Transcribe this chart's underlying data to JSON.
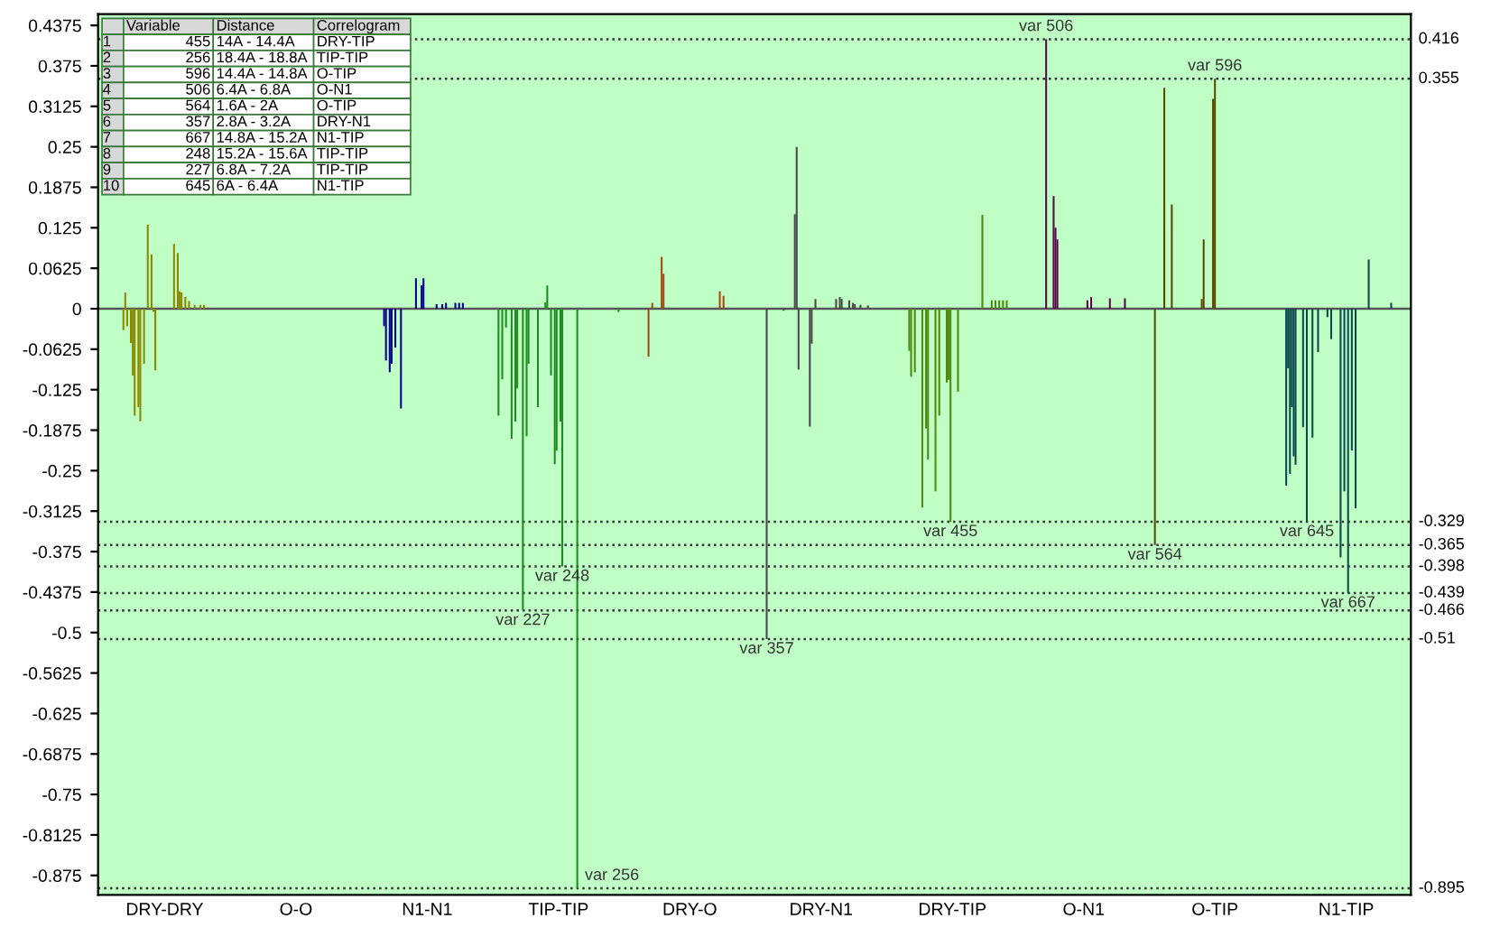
{
  "chart_data": {
    "type": "bar",
    "categories": [
      null,
      null,
      null,
      null,
      null,
      null,
      null,
      null,
      null,
      null,
      null,
      null,
      null,
      null,
      null,
      null,
      null,
      null,
      null,
      null,
      null,
      null,
      null,
      null,
      null,
      null,
      null,
      null,
      null,
      null,
      null,
      null,
      null,
      null,
      null,
      "DRY-DRY",
      null,
      null,
      null,
      null,
      null,
      null,
      null,
      null,
      null,
      null,
      null,
      null,
      null,
      null,
      null,
      null,
      null,
      null,
      null,
      null,
      null,
      null,
      null,
      null,
      null,
      null,
      null,
      null,
      null,
      null,
      null,
      null,
      null,
      null,
      null,
      null,
      null,
      null,
      null,
      null,
      null,
      null,
      null,
      null,
      null,
      null,
      null,
      null,
      null,
      null,
      null,
      null,
      null,
      null,
      null,
      null,
      null,
      null,
      null,
      null,
      null,
      null,
      null,
      null,
      null,
      null,
      null,
      null,
      null,
      "O-O",
      null,
      null,
      null,
      null,
      null,
      null,
      null,
      null,
      null,
      null,
      null,
      null,
      null,
      null,
      null,
      null,
      null,
      null,
      null,
      null,
      null,
      null,
      null,
      null,
      null,
      null,
      null,
      null,
      null,
      null,
      null,
      null,
      null,
      null,
      null,
      null,
      null,
      null,
      null,
      null,
      null,
      null,
      null,
      null,
      null,
      null,
      null,
      null,
      null,
      null,
      null,
      null,
      null,
      null,
      null,
      null,
      null,
      null,
      null,
      null,
      null,
      null,
      null,
      null,
      null,
      null,
      null,
      null,
      null,
      "N1-N1",
      null,
      null,
      null,
      null,
      null,
      null,
      null,
      null,
      null,
      null,
      null,
      null,
      null,
      null,
      null,
      null,
      null,
      null,
      null,
      null,
      null,
      null,
      null,
      null,
      null,
      null,
      null,
      null,
      null,
      null,
      null,
      null,
      null,
      null,
      null,
      null,
      null,
      null,
      null,
      null,
      null,
      null,
      null,
      null,
      null,
      null,
      null,
      null,
      null,
      null,
      null,
      null,
      null,
      null,
      null,
      null,
      null,
      null,
      null,
      null,
      null,
      null,
      null,
      null,
      null,
      null,
      null,
      null,
      null,
      "TIP-TIP",
      null,
      null,
      null,
      null,
      null,
      null,
      null,
      null,
      null,
      null,
      null,
      null,
      null,
      null,
      null,
      null,
      null,
      null,
      null,
      null,
      null,
      null,
      null,
      null,
      null,
      null,
      null,
      null,
      null,
      null,
      null,
      null,
      null,
      null,
      null,
      null,
      null,
      null,
      null,
      null,
      null,
      null,
      null,
      null,
      null,
      null,
      null,
      null,
      null,
      null,
      null,
      null,
      null,
      null,
      null,
      null,
      null,
      null,
      null,
      null,
      null,
      null,
      null,
      null,
      null,
      null,
      null,
      null,
      null,
      "DRY-O",
      null,
      null,
      null,
      null,
      null,
      null,
      null,
      null,
      null,
      null,
      null,
      null,
      null,
      null,
      null,
      null,
      null,
      null,
      null,
      null,
      null,
      null,
      null,
      null,
      null,
      null,
      null,
      null,
      null,
      null,
      null,
      null,
      null,
      null,
      null,
      null,
      null,
      null,
      null,
      null,
      null,
      null,
      null,
      null,
      null,
      null,
      null,
      null,
      null,
      null,
      null,
      null,
      null,
      null,
      null,
      null,
      null,
      null,
      null,
      null,
      null,
      null,
      null,
      null,
      null,
      null,
      null,
      null,
      null,
      "DRY-N1",
      null,
      null,
      null,
      null,
      null,
      null,
      null,
      null,
      null,
      null,
      null,
      null,
      null,
      null,
      null,
      null,
      null,
      null,
      null,
      null,
      null,
      null,
      null,
      null,
      null,
      null,
      null,
      null,
      null,
      null,
      null,
      null,
      null,
      null,
      null,
      null,
      null,
      null,
      null,
      null,
      null,
      null,
      null,
      null,
      null,
      null,
      null,
      null,
      null,
      null,
      null,
      null,
      null,
      null,
      null,
      null,
      null,
      null,
      null,
      null,
      null,
      null,
      null,
      null,
      null,
      null,
      null,
      null,
      null,
      "DRY-TIP",
      null,
      null,
      null,
      null,
      null,
      null,
      null,
      null,
      null,
      null,
      null,
      null,
      null,
      null,
      null,
      null,
      null,
      null,
      null,
      null,
      null,
      null,
      null,
      null,
      null,
      null,
      null,
      null,
      null,
      null,
      null,
      null,
      null,
      null,
      null,
      null,
      null,
      null,
      null,
      null,
      null,
      null,
      null,
      null,
      null,
      null,
      null,
      null,
      null,
      null,
      null,
      null,
      null,
      null,
      null,
      null,
      null,
      null,
      null,
      null,
      null,
      null,
      null,
      null,
      null,
      null,
      null,
      null,
      null,
      "O-N1",
      null,
      null,
      null,
      null,
      null,
      null,
      null,
      null,
      null,
      null,
      null,
      null,
      null,
      null,
      null,
      null,
      null,
      null,
      null,
      null,
      null,
      null,
      null,
      null,
      null,
      null,
      null,
      null,
      null,
      null,
      null,
      null,
      null,
      null,
      null,
      null,
      null,
      null,
      null,
      null,
      null,
      null,
      null,
      null,
      null,
      null,
      null,
      null,
      null,
      null,
      null,
      null,
      null,
      null,
      null,
      null,
      null,
      null,
      null,
      null,
      null,
      null,
      null,
      null,
      null,
      null,
      null,
      null,
      null,
      "O-TIP",
      null,
      null,
      null,
      null,
      null,
      null,
      null,
      null,
      null,
      null,
      null,
      null,
      null,
      null,
      null,
      null,
      null,
      null,
      null,
      null,
      null,
      null,
      null,
      null,
      null,
      null,
      null,
      null,
      null,
      null,
      null,
      null,
      null,
      null,
      null,
      null,
      null,
      null,
      null,
      null,
      null,
      null,
      null,
      null,
      null,
      null,
      null,
      null,
      null,
      null,
      null,
      null,
      null,
      null,
      null,
      null,
      null,
      null,
      null,
      null,
      null,
      null,
      null,
      null,
      null,
      null,
      null,
      null,
      null,
      "N1-TIP",
      null,
      null,
      null,
      null,
      null,
      null,
      null,
      null,
      null,
      null,
      null,
      null,
      null,
      null,
      null,
      null,
      null,
      null,
      null,
      null,
      null,
      null,
      null,
      null,
      null,
      null,
      null,
      null,
      null,
      null,
      null,
      null,
      null,
      null
    ],
    "ylim": [
      -0.905,
      0.455
    ],
    "yticks": [
      0.4375,
      0.375,
      0.3125,
      0.25,
      0.1875,
      0.125,
      0.0625,
      0,
      -0.0625,
      -0.125,
      -0.1875,
      -0.25,
      -0.3125,
      -0.375,
      -0.4375,
      -0.5,
      -0.5625,
      -0.625,
      -0.6875,
      -0.75,
      -0.8125,
      -0.875
    ],
    "series": [
      {
        "values": [
          null,
          null,
          null,
          null,
          null,
          null,
          null,
          null,
          null,
          null,
          null,
          null,
          null,
          -0.033,
          0.025,
          -0.027,
          null,
          -0.053,
          -0.103,
          -0.165,
          null,
          -0.152,
          -0.174,
          null,
          -0.085,
          null,
          0.13,
          null,
          0.084,
          -0.005,
          -0.095,
          null,
          null,
          null,
          null,
          null,
          null,
          null,
          null,
          null,
          0.1,
          null,
          0.086,
          0.027,
          0.025,
          null,
          0.018,
          null,
          0.012,
          null,
          null,
          0.006,
          null,
          null,
          0.006,
          null,
          0.006,
          null,
          null,
          null,
          null,
          null,
          null,
          null,
          null,
          null,
          null,
          null,
          null,
          null,
          null,
          null,
          null,
          null,
          null,
          null,
          null,
          null,
          null,
          null,
          null,
          null,
          null,
          null,
          null,
          null,
          null,
          null,
          null,
          null,
          null,
          null,
          null,
          null,
          null,
          null,
          null,
          null,
          null,
          null,
          null,
          null,
          null,
          null,
          null,
          null,
          null,
          null,
          null,
          null,
          null,
          null,
          null,
          null,
          null,
          null,
          null,
          null,
          null,
          null,
          null,
          null,
          null,
          null,
          null,
          null,
          null,
          null,
          null,
          null,
          null,
          null,
          null,
          null,
          null,
          null,
          null,
          null,
          null,
          null,
          null,
          null,
          null,
          null,
          null,
          null,
          null,
          null,
          null,
          null,
          null,
          null,
          -0.027,
          -0.08,
          null,
          -0.098,
          -0.085,
          null,
          -0.06,
          null,
          null,
          -0.154,
          null,
          null,
          null,
          null,
          null,
          null,
          null,
          0.047,
          null,
          null,
          0.036,
          0.047,
          null,
          null,
          null,
          null,
          null,
          null,
          0.007,
          null,
          null,
          0.007,
          null,
          0.009,
          null,
          null,
          null,
          null,
          0.009,
          null,
          0.009,
          null,
          0.009,
          null,
          null,
          null,
          null,
          null,
          null,
          null,
          null,
          null,
          null,
          null,
          null,
          null,
          null,
          null,
          null,
          null,
          null,
          -0.165,
          null,
          -0.109,
          null,
          -0.029,
          null,
          null,
          -0.201,
          null,
          -0.174,
          -0.123,
          null,
          null,
          -0.466,
          null,
          -0.197,
          -0.085,
          null,
          null,
          null,
          null,
          -0.152,
          null,
          null,
          null,
          0.01,
          0.036,
          null,
          -0.103,
          null,
          -0.24,
          -0.219,
          null,
          -0.174,
          -0.398,
          null,
          null,
          null,
          null,
          null,
          null,
          null,
          -0.895,
          null,
          null,
          null,
          null,
          null,
          null,
          null,
          null,
          null,
          null,
          null,
          null,
          null,
          null,
          null,
          null,
          null,
          null,
          null,
          null,
          null,
          -0.005,
          null,
          null,
          null,
          null,
          null,
          null,
          null,
          null,
          null,
          null,
          null,
          null,
          null,
          null,
          null,
          -0.074,
          null,
          0.009,
          null,
          null,
          null,
          null,
          0.08,
          0.054,
          null,
          null,
          null,
          null,
          null,
          null,
          null,
          null,
          null,
          null,
          null,
          null,
          null,
          null,
          null,
          null,
          null,
          null,
          null,
          null,
          null,
          null,
          null,
          null,
          null,
          null,
          null,
          null,
          null,
          0.027,
          null,
          0.02,
          null,
          null,
          null,
          null,
          null,
          null,
          null,
          null,
          null,
          null,
          null,
          null,
          null,
          null,
          null,
          null,
          null,
          null,
          null,
          null,
          null,
          null,
          -0.51,
          null,
          null,
          null,
          null,
          null,
          null,
          null,
          null,
          -0.003,
          null,
          null,
          null,
          null,
          null,
          0.146,
          0.25,
          -0.094,
          null,
          null,
          null,
          null,
          null,
          -0.182,
          -0.054,
          null,
          0.015,
          null,
          null,
          null,
          null,
          null,
          null,
          null,
          null,
          null,
          null,
          0.015,
          null,
          0.018,
          0.015,
          null,
          null,
          null,
          0.013,
          null,
          0.009,
          0.007,
          null,
          null,
          0.006,
          null,
          null,
          null,
          0.005,
          null,
          null,
          null,
          null,
          null,
          null,
          null,
          null,
          null,
          null,
          null,
          null,
          null,
          null,
          null,
          null,
          null,
          null,
          null,
          null,
          null,
          -0.065,
          -0.105,
          null,
          -0.098,
          null,
          null,
          null,
          -0.307,
          null,
          -0.185,
          -0.233,
          null,
          null,
          null,
          -0.282,
          null,
          -0.165,
          null,
          null,
          null,
          -0.114,
          -0.11,
          -0.329,
          null,
          null,
          null,
          -0.128,
          null,
          null,
          null,
          null,
          null,
          null,
          null,
          null,
          null,
          null,
          null,
          null,
          0.145,
          null,
          null,
          null,
          null,
          0.013,
          null,
          0.013,
          null,
          0.013,
          null,
          0.013,
          null,
          0.013,
          null,
          null,
          null,
          null,
          null,
          null,
          null,
          null,
          null,
          null,
          null,
          null,
          null,
          null,
          null,
          null,
          null,
          null,
          null,
          null,
          0.416,
          null,
          null,
          null,
          0.174,
          0.125,
          0.107,
          null,
          null,
          null,
          null,
          null,
          null,
          null,
          null,
          null,
          null,
          null,
          null,
          null,
          null,
          null,
          0.013,
          null,
          0.018,
          null,
          null,
          null,
          null,
          null,
          null,
          null,
          null,
          null,
          0.016,
          null,
          null,
          null,
          null,
          null,
          null,
          null,
          0.016,
          null,
          null,
          null,
          null,
          null,
          null,
          null,
          null,
          null,
          null,
          null,
          null,
          null,
          null,
          null,
          -0.365,
          null,
          null,
          null,
          null,
          0.341,
          null,
          null,
          null,
          0.161,
          null,
          null,
          null,
          null,
          null,
          null,
          null,
          null,
          null,
          null,
          null,
          null,
          null,
          null,
          null,
          0.015,
          0.107,
          null,
          null,
          null,
          null,
          0.324,
          0.355,
          null,
          null,
          null,
          null,
          null,
          null,
          null,
          null,
          null,
          null,
          null,
          null,
          null,
          null,
          null,
          null,
          null,
          null,
          null,
          null,
          null,
          null,
          null,
          null,
          null,
          null,
          null,
          null,
          null,
          null,
          null,
          null,
          null,
          null,
          null,
          null,
          null,
          -0.273,
          -0.092,
          -0.255,
          -0.152,
          -0.228,
          -0.241,
          null,
          null,
          null,
          -0.183,
          null,
          -0.329,
          null,
          null,
          -0.199,
          null,
          null,
          -0.067,
          null,
          null,
          null,
          null,
          -0.013,
          null,
          -0.047,
          null,
          null,
          null,
          null,
          -0.384,
          null,
          -0.282,
          null,
          -0.439,
          null,
          -0.219,
          null,
          -0.308,
          null,
          null,
          null,
          null,
          null,
          null,
          0.076,
          null,
          null,
          null,
          null,
          null,
          null,
          null,
          null,
          null,
          null,
          null,
          0.009,
          null,
          null,
          null,
          null,
          null,
          null,
          null,
          null,
          null,
          null
        ],
        "colors": [
          "#8a8a00",
          "#8a8a00",
          "#8a8a00",
          "#8a8a00",
          "#8a8a00",
          "#8a8a00",
          "#8a8a00",
          "#8a8a00",
          "#8a8a00",
          "#8a8a00",
          "#8a8a00",
          "#8a8a00",
          "#8a8a00",
          "#8a8a00",
          "#8a8a00",
          "#8a8a00",
          "#8a8a00",
          "#8a8a00",
          "#8a8a00",
          "#8a8a00",
          "#8a8a00",
          "#8a8a00",
          "#8a8a00",
          "#8a8a00",
          "#8a8a00",
          "#8a8a00",
          "#8a8a00",
          "#8a8a00",
          "#8a8a00",
          "#8a8a00",
          "#8a8a00",
          "#8a8a00",
          "#8a8a00",
          "#8a8a00",
          "#8a8a00",
          "#8a8a00",
          "#8a8a00",
          "#8a8a00",
          "#8a8a00",
          "#8a8a00",
          "#8a8a00",
          "#8a8a00",
          "#8a8a00",
          "#8a8a00",
          "#8a8a00",
          "#8a8a00",
          "#8a8a00",
          "#8a8a00",
          "#8a8a00",
          "#8a8a00",
          "#8a8a00",
          "#8a8a00",
          "#8a8a00",
          "#8a8a00",
          "#8a8a00",
          "#8a8a00",
          "#8a8a00",
          "#8a8a00",
          "#8a8a00",
          "#8a8a00",
          "#8a8a00",
          "#8a8a00",
          "#8a8a00",
          "#8a8a00",
          "#8a8a00",
          "#8a8a00",
          "#8a8a00",
          "#8a8a00",
          "#8a8a00",
          "#8a8a00",
          null,
          null,
          null,
          null,
          null,
          null,
          null,
          null,
          null,
          null,
          null,
          null,
          null,
          null,
          null,
          null,
          null,
          null,
          null,
          null,
          null,
          null,
          null,
          null,
          null,
          null,
          null,
          null,
          null,
          null,
          null,
          null,
          null,
          null,
          null,
          null,
          null,
          null,
          null,
          null,
          null,
          null,
          null,
          null,
          null,
          null,
          null,
          null,
          null,
          null,
          null,
          null,
          null,
          null,
          null,
          null,
          null,
          null,
          null,
          null,
          null,
          null,
          null,
          null,
          null,
          null,
          null,
          null,
          null,
          null,
          "#00008a",
          "#00008a",
          "#00008a",
          "#00008a",
          "#00008a",
          "#00008a",
          "#00008a",
          "#00008a",
          "#00008a",
          "#00008a",
          "#00008a",
          "#00008a",
          "#00008a",
          "#00008a",
          "#00008a",
          "#00008a",
          "#00008a",
          "#00008a",
          "#00008a",
          "#00008a",
          "#00008a",
          "#00008a",
          "#00008a",
          "#00008a",
          "#00008a",
          "#00008a",
          "#00008a",
          "#00008a",
          "#00008a",
          "#00008a",
          "#00008a",
          "#00008a",
          "#00008a",
          "#00008a",
          "#00008a",
          "#00008a",
          "#00008a",
          "#00008a",
          "#00008a",
          "#00008a",
          "#00008a",
          "#00008a",
          "#00008a",
          "#00008a",
          "#00008a",
          "#00008a",
          "#00008a",
          "#00008a",
          "#00008a",
          "#00008a",
          "#00008a",
          "#00008a",
          "#00008a",
          "#00008a",
          "#00008a",
          "#00008a",
          "#00008a",
          "#00008a",
          "#00008a",
          "#00008a",
          "#00008a",
          "#00008a",
          "#00008a",
          "#00008a",
          "#00008a",
          "#00008a",
          "#00008a",
          "#00008a",
          "#00008a",
          "#00008a",
          "#1e8c1e",
          "#1e8c1e",
          "#1e8c1e",
          "#1e8c1e",
          "#1e8c1e",
          "#1e8c1e",
          "#1e8c1e",
          "#1e8c1e",
          "#1e8c1e",
          "#1e8c1e",
          "#1e8c1e",
          "#1e8c1e",
          "#1e8c1e",
          "#1e8c1e",
          "#1e8c1e",
          "#1e8c1e",
          "#1e8c1e",
          "#1e8c1e",
          "#1e8c1e",
          "#1e8c1e",
          "#1e8c1e",
          "#1e8c1e",
          "#1e8c1e",
          "#1e8c1e",
          "#1e8c1e",
          "#1e8c1e",
          "#1e8c1e",
          "#1e8c1e",
          "#1e8c1e",
          "#1e8c1e",
          "#1e8c1e",
          "#1e8c1e",
          "#1e8c1e",
          "#1e8c1e",
          "#1e8c1e",
          "#1e8c1e",
          "#1e8c1e",
          "#1e8c1e",
          "#1e8c1e",
          "#1e8c1e",
          "#1e8c1e",
          "#1e8c1e",
          "#1e8c1e",
          "#1e8c1e",
          "#1e8c1e",
          "#1e8c1e",
          "#1e8c1e",
          "#1e8c1e",
          "#1e8c1e",
          "#1e8c1e",
          "#1e8c1e",
          "#1e8c1e",
          "#1e8c1e",
          "#1e8c1e",
          "#1e8c1e",
          "#1e8c1e",
          "#1e8c1e",
          "#1e8c1e",
          "#1e8c1e",
          "#1e8c1e",
          "#1e8c1e",
          "#1e8c1e",
          "#1e8c1e",
          "#1e8c1e",
          "#1e8c1e",
          "#1e8c1e",
          "#1e8c1e",
          "#1e8c1e",
          "#1e8c1e",
          "#1e8c1e",
          "#a04a14",
          "#a04a14",
          "#a04a14",
          "#a04a14",
          "#a04a14",
          "#a04a14",
          "#a04a14",
          "#a04a14",
          "#a04a14",
          "#a04a14",
          "#a04a14",
          "#a04a14",
          "#a04a14",
          "#a04a14",
          "#a04a14",
          "#a04a14",
          "#a04a14",
          "#a04a14",
          "#a04a14",
          "#a04a14",
          "#a04a14",
          "#a04a14",
          "#a04a14",
          "#a04a14",
          "#a04a14",
          "#a04a14",
          "#a04a14",
          "#a04a14",
          "#a04a14",
          "#a04a14",
          "#a04a14",
          "#a04a14",
          "#a04a14",
          "#a04a14",
          "#a04a14",
          "#a04a14",
          "#a04a14",
          "#a04a14",
          "#a04a14",
          "#a04a14",
          "#a04a14",
          "#a04a14",
          "#a04a14",
          "#a04a14",
          "#a04a14",
          "#a04a14",
          "#a04a14",
          "#a04a14",
          "#a04a14",
          "#a04a14",
          "#a04a14",
          "#a04a14",
          "#a04a14",
          "#a04a14",
          "#a04a14",
          "#a04a14",
          "#a04a14",
          "#a04a14",
          "#a04a14",
          "#a04a14",
          "#a04a14",
          "#a04a14",
          "#a04a14",
          "#a04a14",
          "#a04a14",
          "#a04a14",
          "#a04a14",
          "#a04a14",
          "#a04a14",
          "#a04a14",
          "#4a4a4a",
          "#4a4a4a",
          "#4a4a4a",
          "#4a4a4a",
          "#4a4a4a",
          "#4a4a4a",
          "#4a4a4a",
          "#4a4a4a",
          "#4a4a4a",
          "#4a4a4a",
          "#4a4a4a",
          "#4a4a4a",
          "#4a4a4a",
          "#4a4a4a",
          "#4a4a4a",
          "#4a4a4a",
          "#4a4a4a",
          "#4a4a4a",
          "#4a4a4a",
          "#4a4a4a",
          "#4a4a4a",
          "#4a4a4a",
          "#4a4a4a",
          "#4a4a4a",
          "#4a4a4a",
          "#4a4a4a",
          "#4a4a4a",
          "#4a4a4a",
          "#4a4a4a",
          "#4a4a4a",
          "#4a4a4a",
          "#4a4a4a",
          "#4a4a4a",
          "#4a4a4a",
          "#4a4a4a",
          "#4a4a4a",
          "#4a4a4a",
          "#4a4a4a",
          "#4a4a4a",
          "#4a4a4a",
          "#4a4a4a",
          "#4a4a4a",
          "#4a4a4a",
          "#4a4a4a",
          "#4a4a4a",
          "#4a4a4a",
          "#4a4a4a",
          "#4a4a4a",
          "#4a4a4a",
          "#4a4a4a",
          "#4a4a4a",
          "#4a4a4a",
          "#4a4a4a",
          "#4a4a4a",
          "#4a4a4a",
          "#4a4a4a",
          "#4a4a4a",
          "#4a4a4a",
          "#4a4a4a",
          "#4a4a4a",
          "#4a4a4a",
          "#4a4a4a",
          "#4a4a4a",
          "#4a4a4a",
          "#4a4a4a",
          "#4a4a4a",
          "#4a4a4a",
          "#4a4a4a",
          "#4a4a4a",
          "#4a4a4a",
          "#4e8a10",
          "#4e8a10",
          "#4e8a10",
          "#4e8a10",
          "#4e8a10",
          "#4e8a10",
          "#4e8a10",
          "#4e8a10",
          "#4e8a10",
          "#4e8a10",
          "#4e8a10",
          "#4e8a10",
          "#4e8a10",
          "#4e8a10",
          "#4e8a10",
          "#4e8a10",
          "#4e8a10",
          "#4e8a10",
          "#4e8a10",
          "#4e8a10",
          "#4e8a10",
          "#4e8a10",
          "#4e8a10",
          "#4e8a10",
          "#4e8a10",
          "#4e8a10",
          "#4e8a10",
          "#4e8a10",
          "#4e8a10",
          "#4e8a10",
          "#4e8a10",
          "#4e8a10",
          "#4e8a10",
          "#4e8a10",
          "#4e8a10",
          "#4e8a10",
          "#4e8a10",
          "#4e8a10",
          "#4e8a10",
          "#4e8a10",
          "#4e8a10",
          "#4e8a10",
          "#4e8a10",
          "#4e8a10",
          "#4e8a10",
          "#4e8a10",
          "#4e8a10",
          "#4e8a10",
          "#4e8a10",
          "#4e8a10",
          "#4e8a10",
          "#4e8a10",
          "#4e8a10",
          "#4e8a10",
          "#4e8a10",
          "#4e8a10",
          "#4e8a10",
          "#4e8a10",
          "#4e8a10",
          "#4e8a10",
          "#4e8a10",
          "#4e8a10",
          "#4e8a10",
          "#4e8a10",
          "#4e8a10",
          "#4e8a10",
          "#4e8a10",
          "#4e8a10",
          "#4e8a10",
          "#4e8a10",
          "#5a0a4a",
          "#5a0a4a",
          "#5a0a4a",
          "#5a0a4a",
          "#5a0a4a",
          "#5a0a4a",
          "#5a0a4a",
          "#5a0a4a",
          "#5a0a4a",
          "#5a0a4a",
          "#5a0a4a",
          "#5a0a4a",
          "#5a0a4a",
          "#5a0a4a",
          "#5a0a4a",
          "#5a0a4a",
          "#5a0a4a",
          "#5a0a4a",
          "#5a0a4a",
          "#5a0a4a",
          "#5a0a4a",
          "#5a0a4a",
          "#5a0a4a",
          "#5a0a4a",
          "#5a0a4a",
          "#5a0a4a",
          "#5a0a4a",
          "#5a0a4a",
          "#5a0a4a",
          "#5a0a4a",
          "#5a0a4a",
          "#5a0a4a",
          "#5a0a4a",
          "#5a0a4a",
          "#5a0a4a",
          "#5a0a4a",
          "#5a0a4a",
          "#5a0a4a",
          "#5a0a4a",
          "#5a0a4a",
          "#5a0a4a",
          "#5a0a4a",
          "#5a0a4a",
          "#5a0a4a",
          "#5a0a4a",
          "#5a0a4a",
          "#5a0a4a",
          "#5a0a4a",
          "#5a0a4a",
          "#5a0a4a",
          "#5a0a4a",
          "#5a0a4a",
          "#5a0a4a",
          "#5a0a4a",
          "#5a0a4a",
          "#5a0a4a",
          "#5a0a4a",
          "#5a0a4a",
          "#5a0a4a",
          "#5a0a4a",
          "#5a0a4a",
          "#5a0a4a",
          "#5a0a4a",
          "#5a0a4a",
          "#5a0a4a",
          "#5a0a4a",
          "#5a0a4a",
          "#5a0a4a",
          "#5a0a4a",
          "#5a0a4a",
          "#5a4a00",
          "#5a4a00",
          "#5a4a00",
          "#5a4a00",
          "#5a4a00",
          "#5a4a00",
          "#5a4a00",
          "#5a4a00",
          "#5a4a00",
          "#5a4a00",
          "#5a4a00",
          "#5a4a00",
          "#5a4a00",
          "#5a4a00",
          "#5a4a00",
          "#5a4a00",
          "#5a4a00",
          "#5a4a00",
          "#5a4a00",
          "#5a4a00",
          "#5a4a00",
          "#5a4a00",
          "#5a4a00",
          "#5a4a00",
          "#5a4a00",
          "#5a4a00",
          "#5a4a00",
          "#5a4a00",
          "#5a4a00",
          "#5a4a00",
          "#5a4a00",
          "#5a4a00",
          "#5a4a00",
          "#5a4a00",
          "#5a4a00",
          "#5a4a00",
          "#5a4a00",
          "#5a4a00",
          "#5a4a00",
          "#5a4a00",
          "#5a4a00",
          "#5a4a00",
          "#5a4a00",
          "#5a4a00",
          "#5a4a00",
          "#5a4a00",
          "#5a4a00",
          "#5a4a00",
          "#5a4a00",
          "#5a4a00",
          "#5a4a00",
          "#5a4a00",
          "#5a4a00",
          "#5a4a00",
          "#5a4a00",
          "#5a4a00",
          "#5a4a00",
          "#5a4a00",
          "#5a4a00",
          "#5a4a00",
          "#5a4a00",
          "#5a4a00",
          "#5a4a00",
          "#5a4a00",
          "#5a4a00",
          "#5a4a00",
          "#5a4a00",
          "#5a4a00",
          "#5a4a00",
          "#5a4a00",
          "#0a4a4a",
          "#0a4a4a",
          "#0a4a4a",
          "#0a4a4a",
          "#0a4a4a",
          "#0a4a4a",
          "#0a4a4a",
          "#0a4a4a",
          "#0a4a4a",
          "#0a4a4a",
          "#0a4a4a",
          "#0a4a4a",
          "#0a4a4a",
          "#0a4a4a",
          "#0a4a4a",
          "#0a4a4a",
          "#0a4a4a",
          "#0a4a4a",
          "#0a4a4a",
          "#0a4a4a",
          "#0a4a4a",
          "#0a4a4a",
          "#0a4a4a",
          "#0a4a4a",
          "#0a4a4a",
          "#0a4a4a",
          "#0a4a4a",
          "#0a4a4a",
          "#0a4a4a",
          "#0a4a4a",
          "#0a4a4a",
          "#0a4a4a",
          "#0a4a4a",
          "#0a4a4a",
          "#0a4a4a",
          "#0a4a4a",
          "#0a4a4a",
          "#0a4a4a",
          "#0a4a4a",
          "#0a4a4a",
          "#0a4a4a",
          "#0a4a4a",
          "#0a4a4a",
          "#0a4a4a",
          "#0a4a4a",
          "#0a4a4a",
          "#0a4a4a",
          "#0a4a4a",
          "#0a4a4a",
          "#0a4a4a",
          "#0a4a4a",
          "#0a4a4a",
          "#0a4a4a",
          "#0a4a4a",
          "#0a4a4a",
          "#0a4a4a",
          "#0a4a4a",
          "#0a4a4a",
          "#0a4a4a",
          "#0a4a4a",
          "#0a4a4a",
          "#0a4a4a",
          "#0a4a4a",
          "#0a4a4a",
          "#0a4a4a",
          "#0a4a4a",
          "#0a4a4a",
          "#0a4a4a",
          "#0a4a4a",
          "#0a4a4a"
        ]
      }
    ],
    "ref_lines": [
      {
        "axis": "y",
        "value": 0,
        "color": "#555555",
        "line_style": "solid"
      },
      {
        "axis": "y",
        "value": 0.416,
        "label": "0.416",
        "color": "#333333",
        "line_style": "dotted"
      },
      {
        "axis": "y",
        "value": 0.355,
        "label": "0.355",
        "color": "#333333",
        "line_style": "dotted"
      },
      {
        "axis": "y",
        "value": -0.329,
        "label": "-0.329",
        "color": "#333333",
        "line_style": "dotted"
      },
      {
        "axis": "y",
        "value": -0.365,
        "label": "-0.365",
        "color": "#333333",
        "line_style": "dotted"
      },
      {
        "axis": "y",
        "value": -0.398,
        "label": "-0.398",
        "color": "#333333",
        "line_style": "dotted"
      },
      {
        "axis": "y",
        "value": -0.439,
        "label": "-0.439",
        "color": "#333333",
        "line_style": "dotted"
      },
      {
        "axis": "y",
        "value": -0.466,
        "label": "-0.466",
        "color": "#333333",
        "line_style": "dotted"
      },
      {
        "axis": "y",
        "value": -0.51,
        "label": "-0.51",
        "color": "#333333",
        "line_style": "dotted"
      },
      {
        "axis": "y",
        "value": -0.895,
        "label": "-0.895",
        "color": "#333333",
        "line_style": "dotted"
      }
    ],
    "annotations": [
      {
        "text": "var 506",
        "y": 0.416
      },
      {
        "text": "var 596",
        "y": 0.355
      },
      {
        "text": "var 455",
        "y": -0.329
      },
      {
        "text": "var 645",
        "y": -0.329
      },
      {
        "text": "var 564",
        "y": -0.365
      },
      {
        "text": "var 248",
        "y": -0.398
      },
      {
        "text": "var 667",
        "y": -0.439
      },
      {
        "text": "var 227",
        "y": -0.466
      },
      {
        "text": "var 357",
        "y": -0.51
      },
      {
        "text": "var 256",
        "y": -0.895
      },
      "Variable",
      "Distance",
      "Correlogram",
      "1",
      "455",
      "14A - 14.4A",
      "DRY-TIP",
      "2",
      "256",
      "18.4A - 18.8A",
      "TIP-TIP",
      "3",
      "596",
      "14.4A - 14.8A",
      "O-TIP",
      "4",
      "506",
      "6.4A - 6.8A",
      "O-N1",
      "5",
      "564",
      "1.6A - 2A",
      "O-TIP",
      "6",
      "357",
      "2.8A - 3.2A",
      "DRY-N1",
      "7",
      "667",
      "14.8A - 15.2A",
      "N1-TIP",
      "8",
      "248",
      "15.2A - 15.6A",
      "TIP-TIP",
      "9",
      "227",
      "6.8A - 7.2A",
      "TIP-TIP",
      "10",
      "645",
      "6A - 6.4A",
      "N1-TIP"
    ]
  }
}
